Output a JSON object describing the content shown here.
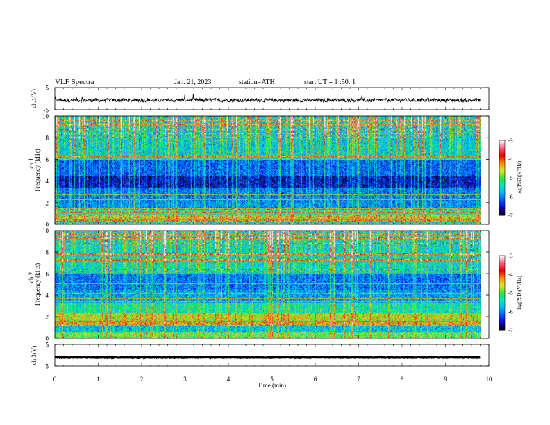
{
  "header": {
    "title": "VLF  Spectra",
    "date": "Jan. 21, 2023",
    "station": "station=ATH",
    "start": "start  UT  =    1  :50: 1"
  },
  "chart_data": [
    {
      "type": "line",
      "ylabel": "ch.1(V)",
      "ylim": [
        -5,
        5
      ],
      "yticks": [
        "5",
        "-5"
      ],
      "xlim": [
        0,
        10
      ],
      "trace_level_v": -0.7,
      "trace_noise_v": 0.8
    },
    {
      "type": "heatmap",
      "ylabel_channel": "ch.1",
      "ylabel": "Frequency (kHz)",
      "ylim": [
        0,
        10
      ],
      "yticks": [
        "0",
        "2",
        "4",
        "6",
        "8",
        "10"
      ],
      "xlim": [
        0,
        10
      ],
      "data_end_min": 9.8,
      "colorbar": {
        "label": "log(PSD)(V²/Hz)",
        "range": [
          -7,
          -3
        ],
        "ticks": [
          "-3",
          "-4",
          "-5",
          "-6",
          "-7"
        ]
      },
      "bands": [
        {
          "from_khz": 0.0,
          "to_khz": 0.5,
          "level": -5.6
        },
        {
          "from_khz": 0.5,
          "to_khz": 0.9,
          "level": -4.6
        },
        {
          "from_khz": 0.9,
          "to_khz": 1.4,
          "level": -5.4
        },
        {
          "from_khz": 1.4,
          "to_khz": 2.2,
          "level": -6.0
        },
        {
          "from_khz": 2.2,
          "to_khz": 3.4,
          "level": -6.1
        },
        {
          "from_khz": 3.4,
          "to_khz": 4.4,
          "level": -6.6
        },
        {
          "from_khz": 4.4,
          "to_khz": 6.0,
          "level": -6.2
        },
        {
          "from_khz": 6.0,
          "to_khz": 10.0,
          "level": -5.6
        }
      ]
    },
    {
      "type": "heatmap",
      "ylabel_channel": "ch.2",
      "ylabel": "Frequency (kHz)",
      "ylim": [
        0,
        10
      ],
      "yticks": [
        "0",
        "2",
        "4",
        "6",
        "8",
        "10"
      ],
      "xlim": [
        0,
        10
      ],
      "data_end_min": 9.8,
      "colorbar": {
        "label": "log(PSD)(V²/Hz)",
        "range": [
          -7,
          -3
        ],
        "ticks": [
          "-3",
          "-4",
          "-5",
          "-6",
          "-7"
        ]
      },
      "bands": [
        {
          "from_khz": 0.0,
          "to_khz": 0.6,
          "level": -5.0
        },
        {
          "from_khz": 0.6,
          "to_khz": 1.6,
          "level": -5.7
        },
        {
          "from_khz": 1.6,
          "to_khz": 2.3,
          "level": -4.7
        },
        {
          "from_khz": 2.3,
          "to_khz": 3.3,
          "level": -5.4
        },
        {
          "from_khz": 3.3,
          "to_khz": 4.5,
          "level": -5.9
        },
        {
          "from_khz": 4.5,
          "to_khz": 6.0,
          "level": -6.1
        },
        {
          "from_khz": 6.0,
          "to_khz": 10.0,
          "level": -5.5
        }
      ]
    },
    {
      "type": "line",
      "ylabel": "ch.3(V)",
      "ylim": [
        -5,
        5
      ],
      "yticks": [
        "5",
        "-5"
      ],
      "xlim": [
        0,
        10
      ],
      "xlabel": "Time  (min)",
      "xticks": [
        "0",
        "1",
        "2",
        "3",
        "4",
        "5",
        "6",
        "7",
        "8",
        "9",
        "10"
      ],
      "trace_level_v": -1.0,
      "trace_noise_v": 0.15
    }
  ],
  "colors": {
    "colormap": [
      "#000000",
      "#1400c8",
      "#0050ff",
      "#00b4ff",
      "#00e6c8",
      "#32e632",
      "#dce632",
      "#ff8c00",
      "#e60000",
      "#ff5a7d",
      "#ffffff"
    ]
  }
}
